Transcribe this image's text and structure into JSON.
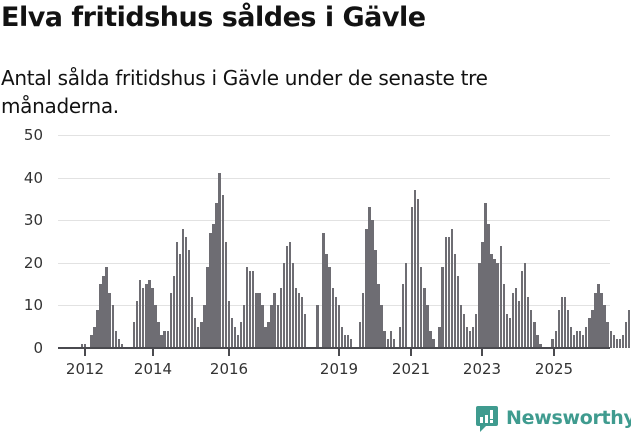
{
  "header": {
    "title": "Elva fritidshus såldes i Gävle",
    "subtitle": "Antal sålda fritidshus i Gävle under de senaste tre månaderna."
  },
  "brand": {
    "name": "Newsworthy",
    "color": "#3f9b8f"
  },
  "colors": {
    "bar": "#6e6d73",
    "highlight": "#1a9a8c",
    "grid": "#e2e2e2"
  },
  "chart_data": {
    "type": "bar",
    "title": "Elva fritidshus såldes i Gävle",
    "subtitle": "Antal sålda fritidshus i Gävle under de senaste tre månaderna.",
    "xlabel": "",
    "ylabel": "",
    "ylim": [
      0,
      50
    ],
    "yticks": [
      0,
      10,
      20,
      30,
      40,
      50
    ],
    "xticks": [
      "2012",
      "2014",
      "2016",
      "2019",
      "2021",
      "2023",
      "2025"
    ],
    "grid": true,
    "legend": null,
    "annotation": {
      "label": "11",
      "target": "last bar"
    },
    "start": "2011-12",
    "frequency": "monthly",
    "values": [
      1,
      1,
      0,
      3,
      5,
      9,
      15,
      17,
      19,
      13,
      10,
      4,
      2,
      1,
      0,
      0,
      0,
      6,
      11,
      16,
      14,
      15,
      16,
      14,
      10,
      6,
      3,
      4,
      4,
      13,
      17,
      25,
      22,
      28,
      26,
      23,
      12,
      7,
      5,
      6,
      10,
      19,
      27,
      29,
      34,
      41,
      36,
      25,
      11,
      7,
      5,
      3,
      6,
      10,
      19,
      18,
      18,
      13,
      13,
      10,
      5,
      6,
      10,
      13,
      10,
      14,
      20,
      24,
      25,
      20,
      14,
      13,
      12,
      8,
      0,
      0,
      0,
      10,
      0,
      27,
      22,
      19,
      14,
      12,
      10,
      5,
      3,
      3,
      2,
      0,
      0,
      6,
      13,
      28,
      33,
      30,
      23,
      15,
      10,
      4,
      2,
      4,
      2,
      0,
      5,
      15,
      20,
      0,
      33,
      37,
      35,
      19,
      14,
      10,
      4,
      2,
      0,
      5,
      19,
      26,
      26,
      28,
      22,
      17,
      10,
      8,
      5,
      4,
      5,
      8,
      20,
      25,
      34,
      29,
      22,
      21,
      20,
      24,
      15,
      8,
      7,
      13,
      14,
      11,
      18,
      20,
      12,
      9,
      6,
      3,
      1,
      0,
      0,
      0,
      2,
      4,
      9,
      12,
      12,
      9,
      5,
      3,
      4,
      4,
      3,
      5,
      7,
      9,
      13,
      15,
      13,
      10,
      6,
      4,
      3,
      2,
      2,
      3,
      6,
      9,
      16,
      14,
      14,
      11
    ]
  },
  "axis": {
    "y_labels": [
      "50",
      "40",
      "30",
      "20",
      "10",
      "0"
    ],
    "x_labels": [
      "2012",
      "2014",
      "2016",
      "2019",
      "2021",
      "2023",
      "2025"
    ],
    "last_value_label": "11"
  }
}
